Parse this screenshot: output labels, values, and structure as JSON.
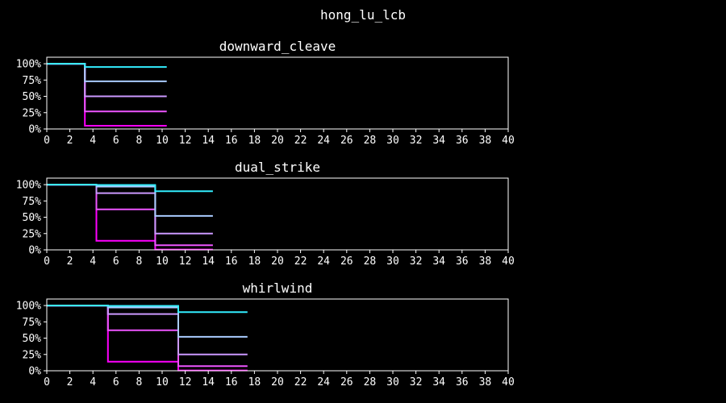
{
  "figure": {
    "title": "hong_lu_lcb"
  },
  "chart_data": [
    {
      "type": "line",
      "step": true,
      "title": "downward_cleave",
      "xlim": [
        0,
        40
      ],
      "ylim": [
        0,
        1.1
      ],
      "xticks": [
        0,
        2,
        4,
        6,
        8,
        10,
        12,
        14,
        16,
        18,
        20,
        22,
        24,
        26,
        28,
        30,
        32,
        34,
        36,
        38,
        40
      ],
      "yticks": [
        0,
        0.25,
        0.5,
        0.75,
        1.0
      ],
      "ytick_labels": [
        "0%",
        "25%",
        "50%",
        "75%",
        "100%"
      ],
      "series": [
        {
          "color": "#ff00ff",
          "points": [
            [
              0,
              1
            ],
            [
              3.3,
              1
            ],
            [
              3.3,
              0.05
            ],
            [
              10.4,
              0.05
            ]
          ]
        },
        {
          "color": "#ee55ff",
          "points": [
            [
              0,
              1
            ],
            [
              3.3,
              1
            ],
            [
              3.3,
              0.27
            ],
            [
              10.4,
              0.27
            ]
          ]
        },
        {
          "color": "#cc99ff",
          "points": [
            [
              0,
              1
            ],
            [
              3.3,
              1
            ],
            [
              3.3,
              0.5
            ],
            [
              10.4,
              0.5
            ]
          ]
        },
        {
          "color": "#aaccff",
          "points": [
            [
              0,
              1
            ],
            [
              3.3,
              1
            ],
            [
              3.3,
              0.73
            ],
            [
              10.4,
              0.73
            ]
          ]
        },
        {
          "color": "#33eeff",
          "points": [
            [
              0,
              1
            ],
            [
              3.3,
              1
            ],
            [
              3.3,
              0.95
            ],
            [
              10.4,
              0.95
            ]
          ]
        }
      ]
    },
    {
      "type": "line",
      "step": true,
      "title": "dual_strike",
      "xlim": [
        0,
        40
      ],
      "ylim": [
        0,
        1.1
      ],
      "xticks": [
        0,
        2,
        4,
        6,
        8,
        10,
        12,
        14,
        16,
        18,
        20,
        22,
        24,
        26,
        28,
        30,
        32,
        34,
        36,
        38,
        40
      ],
      "yticks": [
        0,
        0.25,
        0.5,
        0.75,
        1.0
      ],
      "ytick_labels": [
        "0%",
        "25%",
        "50%",
        "75%",
        "100%"
      ],
      "series": [
        {
          "color": "#ff00ff",
          "points": [
            [
              0,
              1
            ],
            [
              4.3,
              1
            ],
            [
              4.3,
              0.14
            ],
            [
              9.4,
              0.14
            ],
            [
              9.4,
              0.005
            ],
            [
              14.4,
              0.005
            ]
          ]
        },
        {
          "color": "#ee55ff",
          "points": [
            [
              0,
              1
            ],
            [
              4.3,
              1
            ],
            [
              4.3,
              0.62
            ],
            [
              9.4,
              0.62
            ],
            [
              9.4,
              0.07
            ],
            [
              14.4,
              0.07
            ]
          ]
        },
        {
          "color": "#cc99ff",
          "points": [
            [
              0,
              1
            ],
            [
              4.3,
              1
            ],
            [
              4.3,
              0.87
            ],
            [
              9.4,
              0.87
            ],
            [
              9.4,
              0.25
            ],
            [
              14.4,
              0.25
            ]
          ]
        },
        {
          "color": "#aaccff",
          "points": [
            [
              0,
              1
            ],
            [
              4.3,
              1
            ],
            [
              4.3,
              0.97
            ],
            [
              9.4,
              0.97
            ],
            [
              9.4,
              0.52
            ],
            [
              14.4,
              0.52
            ]
          ]
        },
        {
          "color": "#33eeff",
          "points": [
            [
              0,
              1
            ],
            [
              4.3,
              1
            ],
            [
              4.3,
              0.995
            ],
            [
              9.4,
              0.995
            ],
            [
              9.4,
              0.9
            ],
            [
              14.4,
              0.9
            ]
          ]
        }
      ]
    },
    {
      "type": "line",
      "step": true,
      "title": "whirlwind",
      "xlim": [
        0,
        40
      ],
      "ylim": [
        0,
        1.1
      ],
      "xticks": [
        0,
        2,
        4,
        6,
        8,
        10,
        12,
        14,
        16,
        18,
        20,
        22,
        24,
        26,
        28,
        30,
        32,
        34,
        36,
        38,
        40
      ],
      "yticks": [
        0,
        0.25,
        0.5,
        0.75,
        1.0
      ],
      "ytick_labels": [
        "0%",
        "25%",
        "50%",
        "75%",
        "100%"
      ],
      "series": [
        {
          "color": "#ff00ff",
          "points": [
            [
              0,
              1
            ],
            [
              5.3,
              1
            ],
            [
              5.3,
              0.14
            ],
            [
              11.4,
              0.14
            ],
            [
              11.4,
              0.005
            ],
            [
              17.4,
              0.005
            ]
          ]
        },
        {
          "color": "#ee55ff",
          "points": [
            [
              0,
              1
            ],
            [
              5.3,
              1
            ],
            [
              5.3,
              0.62
            ],
            [
              11.4,
              0.62
            ],
            [
              11.4,
              0.07
            ],
            [
              17.4,
              0.07
            ]
          ]
        },
        {
          "color": "#cc99ff",
          "points": [
            [
              0,
              1
            ],
            [
              5.3,
              1
            ],
            [
              5.3,
              0.87
            ],
            [
              11.4,
              0.87
            ],
            [
              11.4,
              0.25
            ],
            [
              17.4,
              0.25
            ]
          ]
        },
        {
          "color": "#aaccff",
          "points": [
            [
              0,
              1
            ],
            [
              5.3,
              1
            ],
            [
              5.3,
              0.97
            ],
            [
              11.4,
              0.97
            ],
            [
              11.4,
              0.52
            ],
            [
              17.4,
              0.52
            ]
          ]
        },
        {
          "color": "#33eeff",
          "points": [
            [
              0,
              1
            ],
            [
              5.3,
              1
            ],
            [
              5.3,
              0.995
            ],
            [
              11.4,
              0.995
            ],
            [
              11.4,
              0.9
            ],
            [
              17.4,
              0.9
            ]
          ]
        }
      ]
    }
  ]
}
